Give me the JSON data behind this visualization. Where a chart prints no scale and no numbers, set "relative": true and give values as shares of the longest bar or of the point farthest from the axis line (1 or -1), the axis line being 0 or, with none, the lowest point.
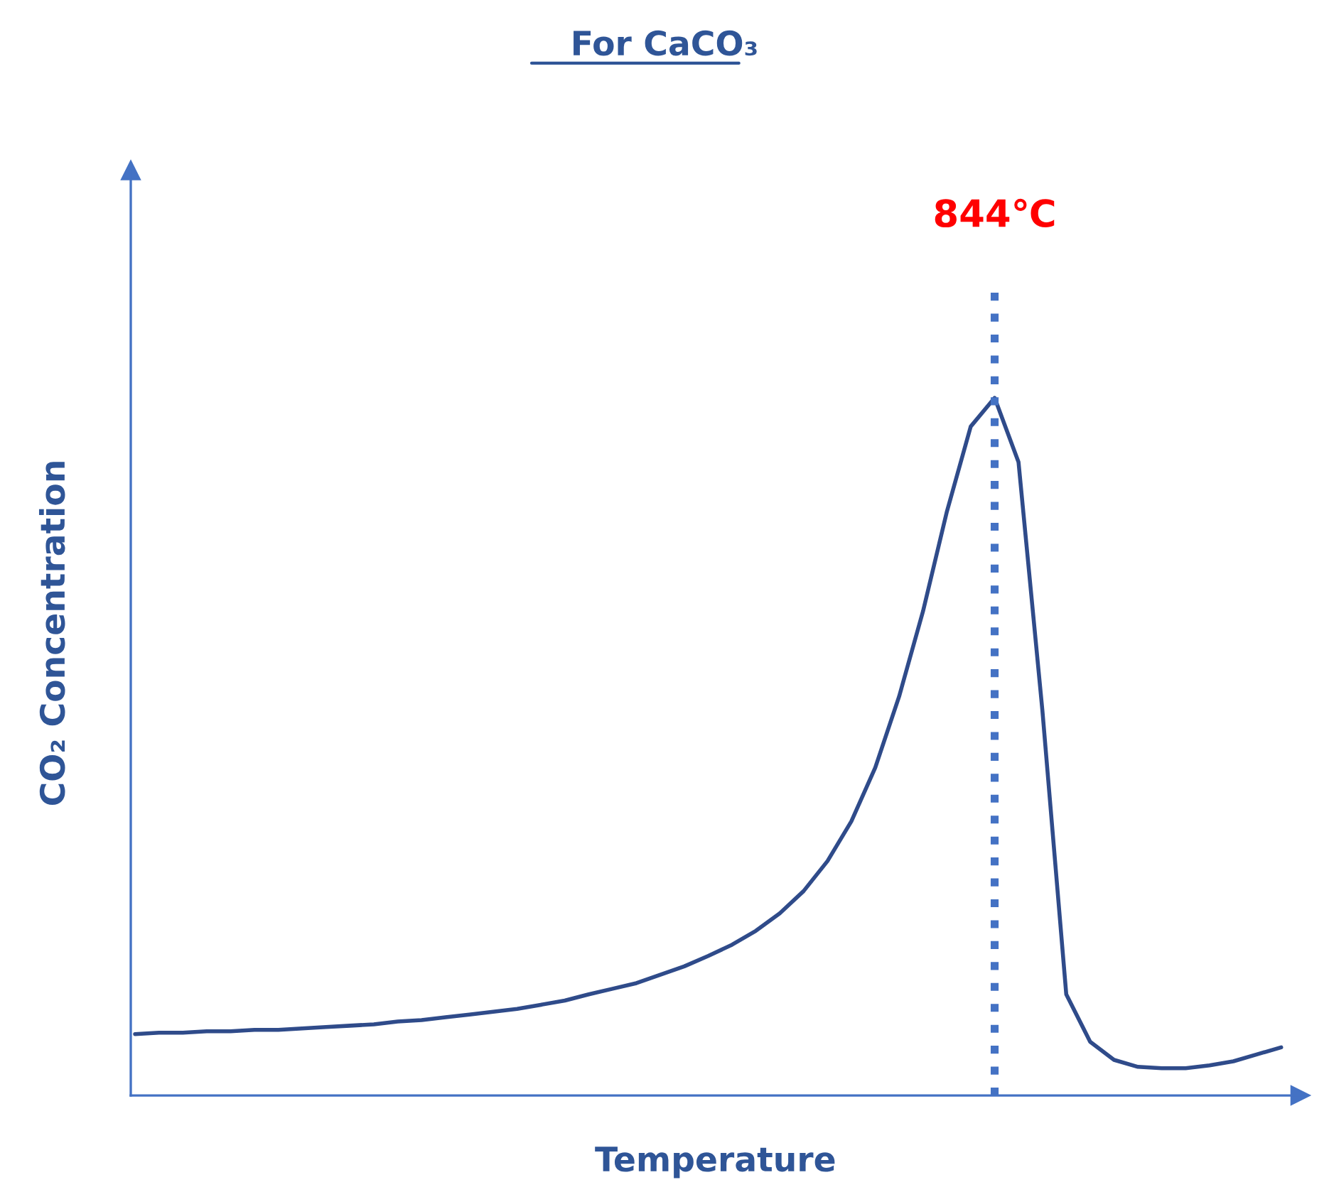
{
  "chart_data": {
    "type": "line",
    "title": "For CaCO₃",
    "xlabel": "Temperature",
    "ylabel": "CO₂ Concentration",
    "relative": true,
    "categories": [
      null,
      null,
      null,
      null,
      null,
      null,
      null,
      null,
      null,
      null,
      null,
      null,
      null,
      null,
      null,
      null,
      null,
      null,
      null,
      null,
      null,
      null,
      null,
      null,
      null,
      null,
      null,
      null,
      null,
      null,
      null,
      null,
      null,
      null,
      null,
      null,
      null,
      null,
      null,
      null,
      null,
      null,
      null,
      null,
      null,
      null,
      null,
      null,
      null
    ],
    "series": [
      {
        "color": "#2f4b8a",
        "values": [
          0.088,
          0.09,
          0.09,
          0.092,
          0.092,
          0.094,
          0.094,
          0.096,
          0.098,
          0.1,
          0.102,
          0.106,
          0.108,
          0.112,
          0.116,
          0.12,
          0.124,
          0.13,
          0.136,
          0.145,
          0.153,
          0.161,
          0.173,
          0.185,
          0.2,
          0.216,
          0.236,
          0.261,
          0.293,
          0.336,
          0.393,
          0.47,
          0.572,
          0.694,
          0.837,
          0.959,
          1,
          0.908,
          0.552,
          0.145,
          0.077,
          0.051,
          0.041,
          0.039,
          0.039,
          0.043,
          0.049,
          0.059,
          0.069
        ]
      }
    ],
    "annotations": [
      "844℃"
    ],
    "grid": false,
    "marker": "none",
    "line_style": "solid"
  }
}
